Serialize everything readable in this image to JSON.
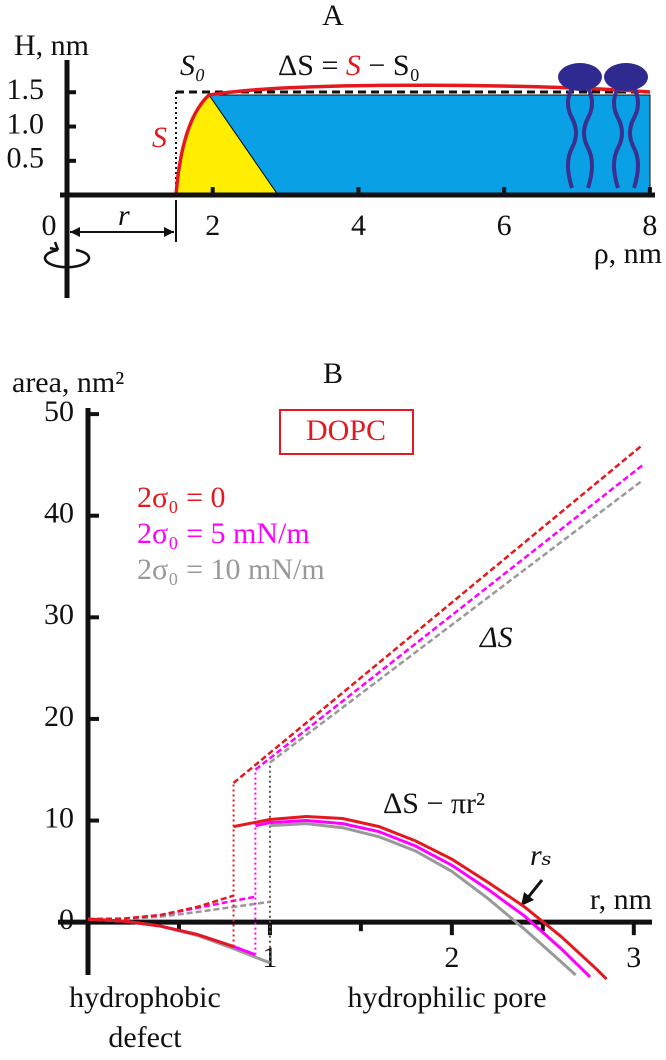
{
  "chart_data": [
    {
      "type": "schematic",
      "title": "A",
      "ylabel": "H, nm",
      "xlabel": "ρ, nm",
      "xlim": [
        0,
        8.07
      ],
      "ylim": [
        -1.5,
        1.97
      ],
      "xticks": [
        0,
        2,
        4,
        6,
        8
      ],
      "yticks": [
        0.5,
        {
          "value": 1.0,
          "label": "1.0"
        },
        1.5
      ],
      "labels": {
        "s0": "S₀",
        "delta_s_formula": [
          "ΔS = ",
          "S",
          " − S₀"
        ],
        "s": "S",
        "r": "r"
      }
    },
    {
      "type": "line",
      "title": "B",
      "ylabel": "area, nm²",
      "xlabel": "r, nm",
      "box_label": "DOPC",
      "xlim": [
        0,
        3.1
      ],
      "ylim": [
        -5.2,
        50.6
      ],
      "xticks": [
        1,
        2,
        3
      ],
      "xminor_ticks": [
        0.5,
        1.5,
        2.5
      ],
      "yticks": [
        0,
        10,
        20,
        30,
        40,
        50
      ],
      "annotations": {
        "delta_s": "ΔS",
        "delta_s_minus_pi_r2": "ΔS − πr²",
        "r_s": "rₛ"
      },
      "region_labels": {
        "hydrophobic_defect": [
          "hydrophobic",
          "defect"
        ],
        "hydrophilic_pore": "hydrophilic pore"
      },
      "series": [
        {
          "name": "2σ₀ = 0",
          "color": "#e3191f",
          "delta_s": {
            "x": [
              0,
              0.2,
              0.4,
              0.6,
              0.8,
              0.8,
              0.8,
              3.05
            ],
            "values": [
              0.3,
              0.35,
              0.7,
              1.5,
              2.6,
              null,
              13.7,
              47
            ]
          },
          "delta_s_minus_pi_r2": {
            "x": [
              0,
              0.2,
              0.4,
              0.6,
              0.8,
              0.8,
              0.8,
              1.0,
              1.2,
              1.4,
              1.6,
              1.8,
              2.0,
              2.2,
              2.4,
              2.6,
              2.8,
              2.85
            ],
            "values": [
              0.3,
              0.1,
              -0.4,
              -1.2,
              -2.4,
              null,
              9.4,
              10.1,
              10.4,
              10.2,
              9.4,
              8.0,
              6.2,
              3.9,
              1.5,
              -1.4,
              -4.7,
              -5.6
            ]
          }
        },
        {
          "name": "2σ₀ = 5 mN/m",
          "color": "#ff00ff",
          "delta_s": {
            "x": [
              0,
              0.2,
              0.4,
              0.6,
              0.8,
              0.92,
              0.92,
              0.92,
              3.05
            ],
            "values": [
              0.3,
              0.35,
              0.7,
              1.4,
              2.1,
              2.5,
              null,
              15.0,
              45.0
            ]
          },
          "delta_s_minus_pi_r2": {
            "x": [
              0,
              0.2,
              0.4,
              0.6,
              0.8,
              0.92,
              0.92,
              0.92,
              1.0,
              1.2,
              1.4,
              1.6,
              1.8,
              2.0,
              2.2,
              2.4,
              2.6,
              2.76
            ],
            "values": [
              0.3,
              0.1,
              -0.4,
              -1.2,
              -2.4,
              -3.2,
              null,
              9.5,
              9.8,
              10.0,
              9.7,
              8.9,
              7.5,
              5.6,
              3.2,
              0.6,
              -2.6,
              -5.4
            ]
          }
        },
        {
          "name": "2σ₀ = 10 mN/m",
          "color": "#999999",
          "delta_s": {
            "x": [
              0,
              0.2,
              0.4,
              0.6,
              0.8,
              1.0,
              1.0,
              1.0,
              3.05
            ],
            "values": [
              0.3,
              0.3,
              0.55,
              1.0,
              1.5,
              2.0,
              null,
              15.7,
              43.5
            ]
          },
          "delta_s_minus_pi_r2": {
            "x": [
              0,
              0.2,
              0.4,
              0.6,
              0.8,
              1.0,
              1.0,
              1.0,
              1.2,
              1.4,
              1.6,
              1.8,
              2.0,
              2.2,
              2.4,
              2.6,
              2.68
            ],
            "values": [
              0.3,
              0.1,
              -0.4,
              -1.3,
              -2.6,
              -4.0,
              null,
              9.5,
              9.7,
              9.3,
              8.4,
              7.0,
              5.0,
              2.3,
              -0.7,
              -3.9,
              -5.2
            ]
          }
        }
      ]
    }
  ]
}
